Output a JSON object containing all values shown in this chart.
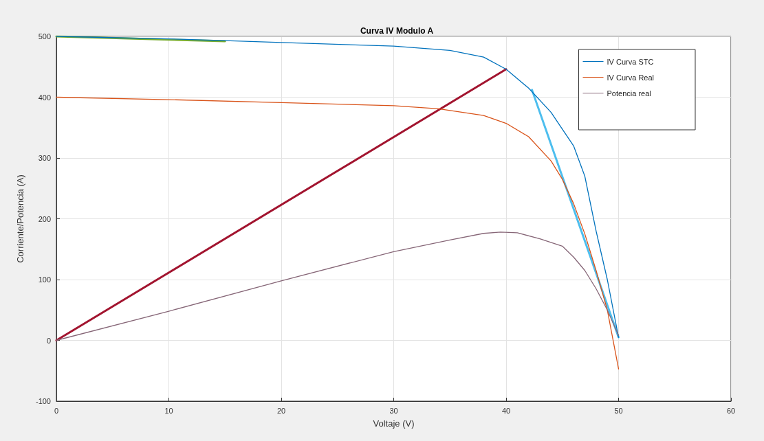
{
  "chart_data": {
    "type": "line",
    "title": "Curva IV Modulo A",
    "xlabel": "Voltaje (V)",
    "ylabel": "Corriente/Potencia (A)",
    "xlim": [
      0,
      60
    ],
    "xticks": [
      0,
      10,
      20,
      30,
      40,
      50,
      60
    ],
    "ylim": [
      -100,
      500
    ],
    "yticks": [
      -100,
      0,
      100,
      200,
      300,
      400,
      500
    ],
    "grid": true,
    "legend": "top right",
    "marker": "none",
    "line_style": "solid",
    "series": [
      {
        "name": "IV Curva STC",
        "color": "#0072bd",
        "x": [
          0,
          10,
          15,
          20,
          30,
          35,
          38,
          40,
          42,
          44,
          46,
          47,
          48,
          49,
          50
        ],
        "values": [
          500,
          496,
          493,
          490,
          484,
          477,
          466,
          446,
          415,
          375,
          320,
          270,
          180,
          100,
          5
        ]
      },
      {
        "name": "IV Curva Real",
        "color": "#d95319",
        "x": [
          0,
          10,
          20,
          30,
          34,
          38,
          40,
          42,
          44,
          45,
          46,
          47,
          48,
          49,
          50
        ],
        "values": [
          400,
          396,
          391,
          386,
          381,
          370,
          357,
          335,
          295,
          265,
          225,
          175,
          115,
          50,
          -47
        ]
      },
      {
        "name": "Potencia real",
        "color": "#866677",
        "x": [
          0,
          10,
          20,
          30,
          35,
          38,
          39.5,
          41,
          43,
          45,
          46,
          47,
          48,
          49,
          50
        ],
        "values": [
          0,
          48,
          98,
          146,
          165,
          176,
          178,
          177,
          167,
          155,
          137,
          115,
          85,
          50,
          8
        ]
      },
      {
        "color": "#77ac30",
        "x": [
          0,
          15
        ],
        "values": [
          500,
          492
        ]
      },
      {
        "color": "#a2142f",
        "x": [
          0,
          40
        ],
        "values": [
          0,
          446
        ]
      },
      {
        "color": "#4dbeee",
        "x": [
          42.3,
          50
        ],
        "values": [
          412,
          5
        ]
      }
    ]
  }
}
